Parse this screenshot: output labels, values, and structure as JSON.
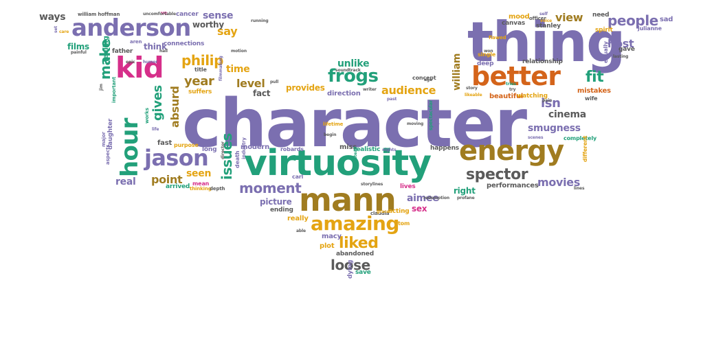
{
  "colors": {
    "purple": "#7b6fb0",
    "green": "#22a07a",
    "orange": "#e4a412",
    "brown": "#a07c20",
    "gray": "#5a5a5a",
    "pink": "#d62f8a",
    "dark_orange": "#d4641a",
    "red": "#c8331e",
    "background": "#ffffff"
  },
  "words": [
    {
      "text": "character",
      "color": "purple"
    },
    {
      "text": "thing",
      "color": "purple"
    },
    {
      "text": "virtuosity",
      "color": "green"
    },
    {
      "text": "mann",
      "color": "brown"
    },
    {
      "text": "energy",
      "color": "brown"
    },
    {
      "text": "better",
      "color": "dark_orange"
    },
    {
      "text": "anderson",
      "color": "purple"
    },
    {
      "text": "kid",
      "color": "pink"
    },
    {
      "text": "jason",
      "color": "purple"
    },
    {
      "text": "hour",
      "color": "green"
    },
    {
      "text": "amazing",
      "color": "orange"
    },
    {
      "text": "people",
      "color": "purple"
    },
    {
      "text": "spector",
      "color": "gray"
    },
    {
      "text": "frogs",
      "color": "green"
    },
    {
      "text": "philip",
      "color": "orange"
    },
    {
      "text": "liked",
      "color": "orange"
    },
    {
      "text": "issues",
      "color": "green"
    },
    {
      "text": "moment",
      "color": "purple"
    },
    {
      "text": "loose",
      "color": "gray"
    },
    {
      "text": "fit",
      "color": "green"
    },
    {
      "text": "isn",
      "color": "purple"
    },
    {
      "text": "cinema",
      "color": "gray"
    },
    {
      "text": "movies",
      "color": "purple"
    },
    {
      "text": "smugness",
      "color": "purple"
    },
    {
      "text": "gives",
      "color": "green"
    },
    {
      "text": "absurd",
      "color": "brown"
    },
    {
      "text": "year",
      "color": "brown"
    },
    {
      "text": "level",
      "color": "brown"
    },
    {
      "text": "seen",
      "color": "orange"
    },
    {
      "text": "point",
      "color": "brown"
    },
    {
      "text": "real",
      "color": "purple"
    },
    {
      "text": "host",
      "color": "purple"
    },
    {
      "text": "view",
      "color": "brown"
    },
    {
      "text": "audience",
      "color": "orange"
    },
    {
      "text": "unlike",
      "color": "green"
    },
    {
      "text": "william",
      "color": "brown"
    },
    {
      "text": "aimee",
      "color": "purple"
    },
    {
      "text": "make",
      "color": "green"
    },
    {
      "text": "say",
      "color": "orange"
    },
    {
      "text": "time",
      "color": "orange"
    },
    {
      "text": "provides",
      "color": "orange"
    },
    {
      "text": "fact",
      "color": "gray"
    },
    {
      "text": "right",
      "color": "green"
    },
    {
      "text": "picture",
      "color": "purple"
    },
    {
      "text": "ways",
      "color": "gray"
    },
    {
      "text": "sense",
      "color": "purple"
    },
    {
      "text": "worthy",
      "color": "gray"
    },
    {
      "text": "films",
      "color": "green"
    },
    {
      "text": "think",
      "color": "purple"
    },
    {
      "text": "sex",
      "color": "pink"
    },
    {
      "text": "direction",
      "color": "purple"
    },
    {
      "text": "performances",
      "color": "gray"
    },
    {
      "text": "beautiful",
      "color": "dark_orange"
    },
    {
      "text": "mistakes",
      "color": "dark_orange"
    },
    {
      "text": "suffers",
      "color": "orange"
    },
    {
      "text": "fast",
      "color": "gray"
    },
    {
      "text": "macy",
      "color": "purple"
    },
    {
      "text": "plot",
      "color": "orange"
    },
    {
      "text": "abandoned",
      "color": "gray"
    },
    {
      "text": "really",
      "color": "orange"
    },
    {
      "text": "realistic",
      "color": "green"
    },
    {
      "text": "miss",
      "color": "gray"
    },
    {
      "text": "modern",
      "color": "purple"
    },
    {
      "text": "ending",
      "color": "gray"
    },
    {
      "text": "save",
      "color": "green"
    },
    {
      "text": "dying",
      "color": "purple"
    },
    {
      "text": "feeling",
      "color": "green"
    },
    {
      "text": "mood",
      "color": "orange"
    },
    {
      "text": "need",
      "color": "gray"
    },
    {
      "text": "sad",
      "color": "purple"
    },
    {
      "text": "canvas",
      "color": "gray"
    },
    {
      "text": "stanley",
      "color": "gray"
    },
    {
      "text": "spirit",
      "color": "orange"
    },
    {
      "text": "gave",
      "color": "gray"
    },
    {
      "text": "relationship",
      "color": "gray"
    },
    {
      "text": "deep",
      "color": "purple"
    },
    {
      "text": "watching",
      "color": "orange"
    },
    {
      "text": "happens",
      "color": "gray"
    },
    {
      "text": "completely",
      "color": "green"
    },
    {
      "text": "different",
      "color": "orange"
    },
    {
      "text": "robards",
      "color": "purple"
    },
    {
      "text": "carl",
      "color": "purple"
    },
    {
      "text": "long",
      "color": "purple"
    },
    {
      "text": "arrived",
      "color": "green"
    },
    {
      "text": "mean",
      "color": "pink"
    },
    {
      "text": "death",
      "color": "purple"
    },
    {
      "text": "father",
      "color": "gray"
    },
    {
      "text": "connections",
      "color": "purple"
    },
    {
      "text": "cancer",
      "color": "purple"
    },
    {
      "text": "daughter",
      "color": "purple"
    },
    {
      "text": "lives",
      "color": "pink"
    },
    {
      "text": "tom",
      "color": "orange"
    },
    {
      "text": "acting",
      "color": "orange"
    },
    {
      "text": "single",
      "color": "orange"
    },
    {
      "text": "concept",
      "color": "gray"
    },
    {
      "text": "wife",
      "color": "gray"
    },
    {
      "text": "officer",
      "color": "gray"
    },
    {
      "text": "purpose",
      "color": "orange"
    },
    {
      "text": "title",
      "color": "gray"
    },
    {
      "text": "william hoffman",
      "color": "gray"
    },
    {
      "text": "julianne",
      "color": "purple"
    },
    {
      "text": "equally",
      "color": "purple"
    },
    {
      "text": "claudia",
      "color": "gray"
    },
    {
      "text": "redemption",
      "color": "gray"
    },
    {
      "text": "storylines",
      "color": "gray"
    },
    {
      "text": "lifetime",
      "color": "orange"
    },
    {
      "text": "begin",
      "color": "gray"
    },
    {
      "text": "industry",
      "color": "purple"
    },
    {
      "text": "thinking",
      "color": "orange"
    },
    {
      "text": "depth",
      "color": "gray"
    },
    {
      "text": "important",
      "color": "green"
    },
    {
      "text": "works",
      "color": "green"
    },
    {
      "text": "nights",
      "color": "purple"
    },
    {
      "text": "soundtrack",
      "color": "gray"
    },
    {
      "text": "writer",
      "color": "gray"
    },
    {
      "text": "filmmaking",
      "color": "purple"
    },
    {
      "text": "philip",
      "color": "purple"
    },
    {
      "text": "aspects",
      "color": "purple"
    },
    {
      "text": "major",
      "color": "purple"
    },
    {
      "text": "painful",
      "color": "gray"
    },
    {
      "text": "hall",
      "color": "gray"
    },
    {
      "text": "epic",
      "color": "gray"
    },
    {
      "text": "humor",
      "color": "purple"
    },
    {
      "text": "pull",
      "color": "gray"
    },
    {
      "text": "age",
      "color": "gray"
    },
    {
      "text": "past",
      "color": "purple"
    },
    {
      "text": "pain",
      "color": "gray"
    },
    {
      "text": "tries",
      "color": "green"
    },
    {
      "text": "try",
      "color": "gray"
    },
    {
      "text": "scenes",
      "color": "purple"
    },
    {
      "text": "moving",
      "color": "gray"
    },
    {
      "text": "spectacular",
      "color": "green"
    },
    {
      "text": "likeable",
      "color": "orange"
    },
    {
      "text": "story",
      "color": "gray"
    },
    {
      "text": "care",
      "color": "orange"
    },
    {
      "text": "aren",
      "color": "purple"
    },
    {
      "text": "set",
      "color": "purple"
    },
    {
      "text": "ve",
      "color": "pink"
    },
    {
      "text": "voice",
      "color": "orange"
    },
    {
      "text": "running",
      "color": "gray"
    },
    {
      "text": "self",
      "color": "purple"
    },
    {
      "text": "uncomfortable",
      "color": "gray"
    },
    {
      "text": "motion",
      "color": "gray"
    },
    {
      "text": "jim",
      "color": "gray"
    },
    {
      "text": "lasting",
      "color": "gray"
    },
    {
      "text": "won",
      "color": "gray"
    },
    {
      "text": "director",
      "color": "gray"
    },
    {
      "text": "flawed",
      "color": "orange"
    },
    {
      "text": "life",
      "color": "purple"
    },
    {
      "text": "grace",
      "color": "orange"
    },
    {
      "text": "profane",
      "color": "gray"
    },
    {
      "text": "lines",
      "color": "gray"
    },
    {
      "text": "able",
      "color": "gray"
    },
    {
      "text": "instead",
      "color": "green"
    }
  ]
}
